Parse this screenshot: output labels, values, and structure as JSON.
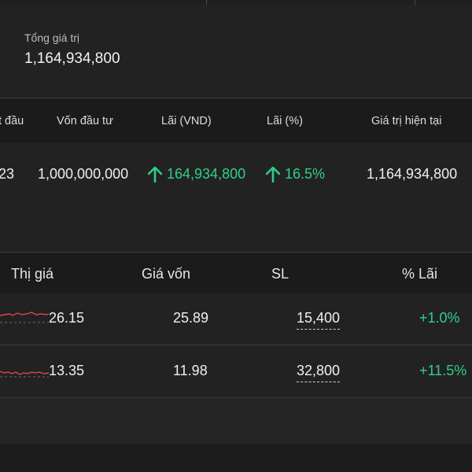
{
  "total": {
    "label": "Tổng giá trị",
    "value": "1,164,934,800"
  },
  "summary": {
    "headers": {
      "start": "t đầu",
      "investment": "Vốn đầu tư",
      "profit_vnd": "Lãi (VND)",
      "profit_pct": "Lãi (%)",
      "current_value": "Giá trị hiện tại"
    },
    "row": {
      "start": "23",
      "investment": "1,000,000,000",
      "profit_vnd": "164,934,800",
      "profit_pct": "16.5%",
      "current_value": "1,164,934,800"
    }
  },
  "holdings": {
    "headers": {
      "market_price": "Thị giá",
      "cost": "Giá vốn",
      "qty": "SL",
      "pct_profit": "% Lãi"
    },
    "rows": [
      {
        "market_price": "26.15",
        "cost": "25.89",
        "qty": "15,400",
        "pct_profit": "+1.0%"
      },
      {
        "market_price": "13.35",
        "cost": "11.98",
        "qty": "32,800",
        "pct_profit": "+11.5%"
      }
    ]
  },
  "colors": {
    "gain": "#2ed08a",
    "spark": "#e0434f",
    "background": "#222222",
    "header_bg": "#1b1b1b"
  },
  "icons": {
    "up": "arrow-up-icon"
  }
}
